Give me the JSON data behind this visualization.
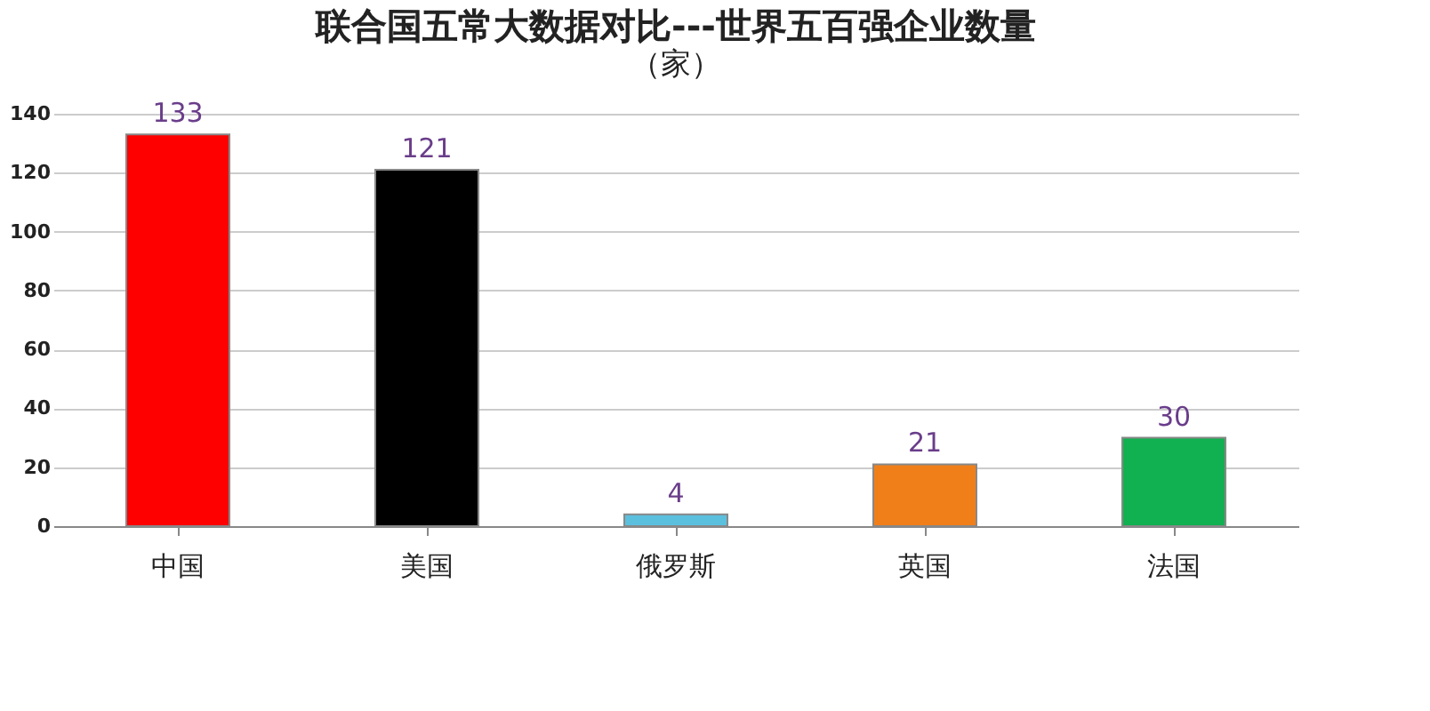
{
  "chart_data": {
    "type": "bar",
    "title": "联合国五常大数据对比---世界五百强企业数量",
    "subtitle": "（家）",
    "categories": [
      "中国",
      "美国",
      "俄罗斯",
      "英国",
      "法国"
    ],
    "values": [
      133,
      121,
      4,
      21,
      30
    ],
    "colors": [
      "#ff0000",
      "#000000",
      "#5bc0de",
      "#f07f1a",
      "#11b050"
    ],
    "ylim": [
      0,
      140
    ],
    "yticks": [
      0,
      20,
      40,
      60,
      80,
      100,
      120,
      140
    ],
    "grid": "y",
    "data_labels": true
  }
}
